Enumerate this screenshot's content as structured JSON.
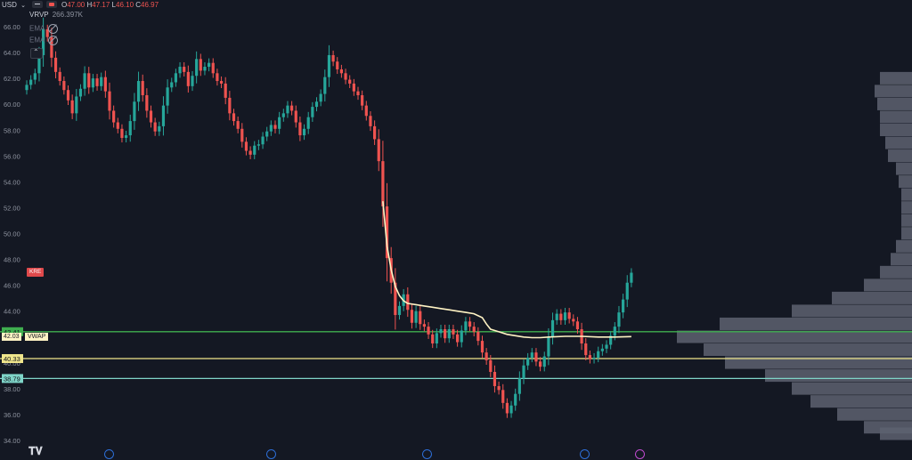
{
  "top_bar": {
    "currency": "USD",
    "ohlc": {
      "o_label": "O",
      "o": "47.00",
      "h_label": "H",
      "h": "47.17",
      "l_label": "L",
      "l": "46.10",
      "c_label": "C",
      "c": "46.97"
    }
  },
  "indicators": [
    {
      "name": "VRVP",
      "value": "266.397K"
    },
    {
      "name": "EMA",
      "value": ""
    },
    {
      "name": "EMA",
      "value": ""
    }
  ],
  "symbol_tag": "KRE",
  "colors": {
    "background": "#141823",
    "up": "#26a69a",
    "down": "#ef5350",
    "vwap": "#fff3c4",
    "green_line": "#3fae4f",
    "yellow_line": "#f0e68c",
    "cyan_line": "#7fd4c8",
    "volume_profile": "#5d6270",
    "axis_text": "#8f94a0"
  },
  "chart_data": {
    "type": "candlestick",
    "ylim": [
      34,
      66
    ],
    "y_ticks": [
      "66.00",
      "64.00",
      "62.00",
      "60.00",
      "58.00",
      "56.00",
      "54.00",
      "52.00",
      "50.00",
      "48.00",
      "46.00",
      "44.00",
      "42.00",
      "40.00",
      "38.00",
      "36.00",
      "34.00"
    ],
    "price_levels": [
      {
        "label": "42.41",
        "value": 42.41,
        "color": "#3fae4f"
      },
      {
        "label": "40.33",
        "value": 40.33,
        "color": "#f0e68c"
      },
      {
        "label": "38.79",
        "value": 38.79,
        "color": "#7fd4c8"
      }
    ],
    "vwap_label": {
      "price": "42.03",
      "name": "VWAP"
    },
    "closes": [
      61.5,
      61.9,
      62.4,
      63.8,
      65.8,
      65.2,
      63.6,
      62.5,
      61.8,
      61.1,
      60.3,
      59.3,
      60.6,
      61.2,
      62.4,
      61.3,
      62.0,
      61.4,
      62.1,
      61.0,
      59.5,
      58.6,
      58.1,
      57.4,
      57.6,
      58.7,
      60.2,
      61.8,
      60.7,
      59.5,
      58.6,
      57.9,
      58.3,
      59.9,
      61.3,
      61.7,
      62.4,
      62.9,
      62.5,
      61.4,
      62.2,
      63.5,
      62.6,
      62.9,
      63.2,
      62.4,
      61.8,
      61.6,
      60.5,
      59.3,
      58.7,
      58.1,
      57.1,
      56.4,
      56.1,
      56.8,
      56.9,
      57.5,
      57.9,
      58.4,
      58.1,
      59.0,
      59.3,
      59.9,
      59.5,
      58.6,
      57.6,
      58.1,
      59.0,
      59.8,
      60.2,
      60.8,
      62.1,
      63.8,
      63.3,
      62.7,
      62.4,
      61.9,
      61.6,
      61.0,
      60.7,
      59.9,
      59.1,
      58.3,
      57.3,
      55.6,
      52.1,
      48.1,
      46.2,
      43.7,
      44.4,
      45.3,
      44.1,
      43.1,
      44.0,
      43.0,
      42.8,
      42.2,
      41.5,
      42.3,
      42.6,
      41.9,
      42.6,
      42.2,
      41.6,
      42.5,
      43.2,
      42.8,
      42.4,
      41.7,
      40.8,
      40.2,
      39.3,
      38.2,
      37.9,
      36.9,
      36.1,
      36.7,
      37.6,
      38.8,
      39.8,
      40.4,
      40.8,
      40.1,
      39.7,
      40.5,
      42.0,
      43.3,
      43.8,
      43.3,
      43.9,
      43.4,
      43.2,
      42.6,
      41.5,
      40.6,
      40.3,
      40.4,
      40.9,
      41.1,
      41.4,
      42.1,
      42.8,
      43.9,
      44.9,
      46.2,
      46.97
    ],
    "vwap": [
      {
        "i": 86,
        "v": 52.5
      },
      {
        "i": 87,
        "v": 49.0
      },
      {
        "i": 88,
        "v": 47.2
      },
      {
        "i": 89,
        "v": 45.9
      },
      {
        "i": 90,
        "v": 45.2
      },
      {
        "i": 91,
        "v": 44.8
      },
      {
        "i": 92,
        "v": 44.6
      },
      {
        "i": 94,
        "v": 44.5
      },
      {
        "i": 96,
        "v": 44.4
      },
      {
        "i": 98,
        "v": 44.3
      },
      {
        "i": 100,
        "v": 44.2
      },
      {
        "i": 102,
        "v": 44.1
      },
      {
        "i": 104,
        "v": 44.0
      },
      {
        "i": 106,
        "v": 43.9
      },
      {
        "i": 108,
        "v": 43.8
      },
      {
        "i": 110,
        "v": 43.5
      },
      {
        "i": 111,
        "v": 43.0
      },
      {
        "i": 112,
        "v": 42.6
      },
      {
        "i": 114,
        "v": 42.4
      },
      {
        "i": 116,
        "v": 42.2
      },
      {
        "i": 118,
        "v": 42.1
      },
      {
        "i": 120,
        "v": 42.0
      },
      {
        "i": 122,
        "v": 41.95
      },
      {
        "i": 124,
        "v": 41.95
      },
      {
        "i": 126,
        "v": 42.0
      },
      {
        "i": 130,
        "v": 42.05
      },
      {
        "i": 134,
        "v": 42.05
      },
      {
        "i": 138,
        "v": 42.0
      },
      {
        "i": 142,
        "v": 42.0
      },
      {
        "i": 146,
        "v": 42.03
      }
    ],
    "volume_profile": [
      {
        "p": 62.0,
        "w": 0.12
      },
      {
        "p": 61.0,
        "w": 0.14
      },
      {
        "p": 60.0,
        "w": 0.13
      },
      {
        "p": 59.0,
        "w": 0.12
      },
      {
        "p": 58.0,
        "w": 0.12
      },
      {
        "p": 57.0,
        "w": 0.1
      },
      {
        "p": 56.0,
        "w": 0.09
      },
      {
        "p": 55.0,
        "w": 0.06
      },
      {
        "p": 54.0,
        "w": 0.05
      },
      {
        "p": 53.0,
        "w": 0.04
      },
      {
        "p": 52.0,
        "w": 0.04
      },
      {
        "p": 51.0,
        "w": 0.04
      },
      {
        "p": 50.0,
        "w": 0.04
      },
      {
        "p": 49.0,
        "w": 0.06
      },
      {
        "p": 48.0,
        "w": 0.08
      },
      {
        "p": 47.0,
        "w": 0.12
      },
      {
        "p": 46.0,
        "w": 0.18
      },
      {
        "p": 45.0,
        "w": 0.3
      },
      {
        "p": 44.0,
        "w": 0.45
      },
      {
        "p": 43.0,
        "w": 0.72
      },
      {
        "p": 42.0,
        "w": 0.88
      },
      {
        "p": 41.0,
        "w": 0.78
      },
      {
        "p": 40.0,
        "w": 0.7
      },
      {
        "p": 39.0,
        "w": 0.55
      },
      {
        "p": 38.0,
        "w": 0.45
      },
      {
        "p": 37.0,
        "w": 0.38
      },
      {
        "p": 36.0,
        "w": 0.28
      },
      {
        "p": 35.0,
        "w": 0.18
      },
      {
        "p": 34.5,
        "w": 0.12
      }
    ]
  }
}
